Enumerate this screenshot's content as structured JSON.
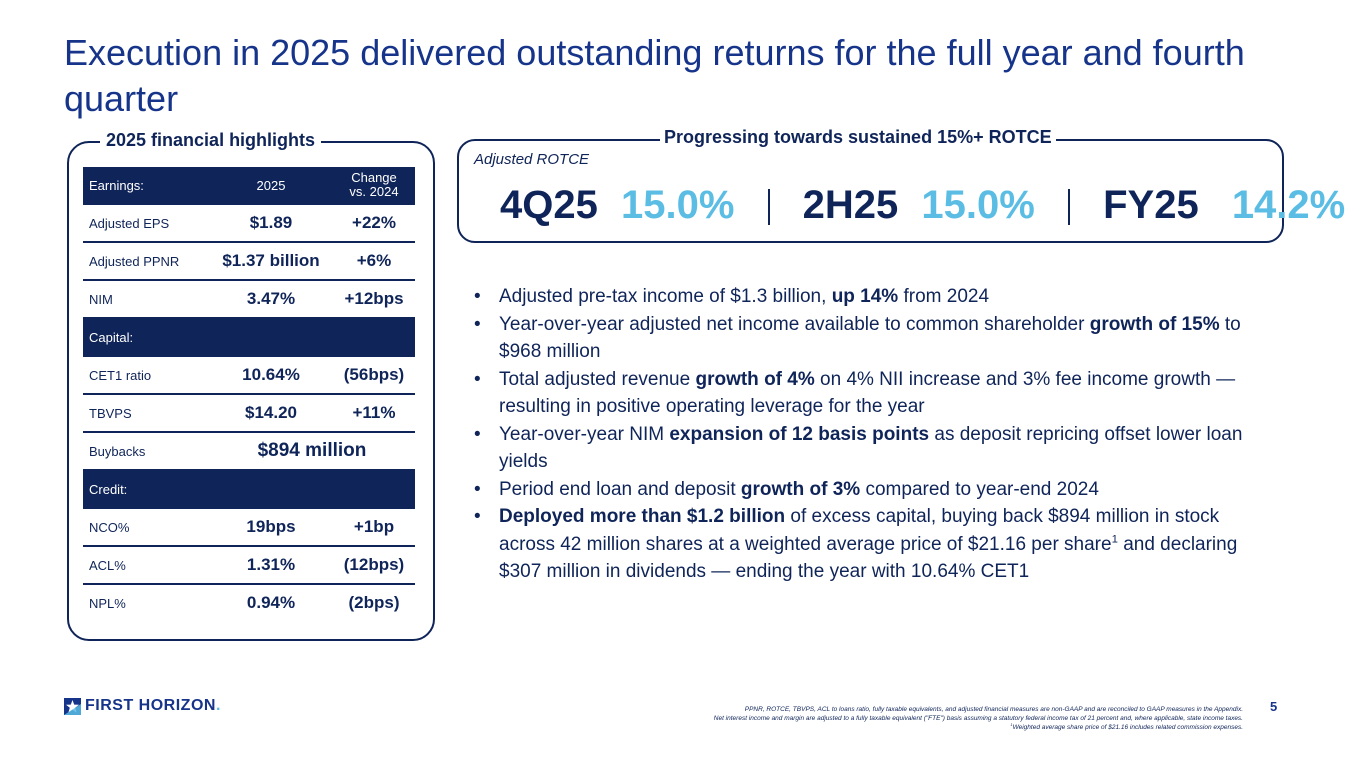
{
  "title": "Execution in 2025 delivered outstanding returns for the full year and fourth quarter",
  "highlights": {
    "label": "2025 financial highlights",
    "earnings_header": {
      "label": "Earnings:",
      "col1": "2025",
      "col2_line1": "Change",
      "col2_line2": "vs. 2024"
    },
    "earnings": [
      {
        "label": "Adjusted EPS",
        "value": "$1.89",
        "change": "+22%"
      },
      {
        "label": "Adjusted PPNR",
        "value": "$1.37 billion",
        "change": "+6%"
      },
      {
        "label": "NIM",
        "value": "3.47%",
        "change": "+12bps"
      }
    ],
    "capital_header": "Capital:",
    "capital": [
      {
        "label": "CET1 ratio",
        "value": "10.64%",
        "change": "(56bps)"
      },
      {
        "label": "TBVPS",
        "value": "$14.20",
        "change": "+11%"
      }
    ],
    "buybacks": {
      "label": "Buybacks",
      "value": "$894 million"
    },
    "credit_header": "Credit:",
    "credit": [
      {
        "label": "NCO%",
        "value": "19bps",
        "change": "+1bp"
      },
      {
        "label": "ACL%",
        "value": "1.31%",
        "change": "(12bps)"
      },
      {
        "label": "NPL%",
        "value": "0.94%",
        "change": "(2bps)"
      }
    ]
  },
  "rotce": {
    "label": "Progressing towards sustained 15%+ ROTCE",
    "sub": "Adjusted ROTCE",
    "items": [
      {
        "period": "4Q25",
        "value": "15.0%"
      },
      {
        "period": "2H25",
        "value": "15.0%"
      },
      {
        "period": "FY25",
        "value": "14.2%"
      }
    ]
  },
  "bullets": [
    {
      "a": "Adjusted pre-tax income of $1.3 billion, ",
      "b": "up 14%",
      "c": " from 2024"
    },
    {
      "a": "Year-over-year adjusted net income available to common shareholder ",
      "b": "growth of 15%",
      "c": " to $968 million"
    },
    {
      "a": "Total adjusted revenue ",
      "b": "growth of 4%",
      "c": " on 4% NII increase and 3% fee income growth — resulting in positive operating leverage for the year"
    },
    {
      "a": "Year-over-year NIM ",
      "b": "expansion of 12 basis points",
      "c": " as deposit repricing offset lower loan yields"
    },
    {
      "a": "Period end loan and deposit ",
      "b": "growth of 3%",
      "c": " compared to year-end 2024"
    },
    {
      "a": "",
      "b": "Deployed more than $1.2 billion",
      "c": " of excess capital, buying back $894 million in stock across 42 million shares at a weighted average price of $21.16 per share",
      "sup": "1",
      "d": " and declaring $307 million in dividends — ending the year with 10.64% CET1"
    }
  ],
  "footer": {
    "logo_text": "FIRST HORIZON",
    "logo_dot": ".",
    "page_number": "5",
    "note1": "PPNR, ROTCE, TBVPS, ACL to loans ratio, fully taxable equivalents, and adjusted financial measures are non-GAAP and are reconciled to GAAP measures in the Appendix.",
    "note2": "Net interest income and margin are adjusted to a fully taxable equivalent (\"FTE\") basis assuming a statutory federal income tax of 21 percent and, where applicable, state income taxes.",
    "note3_sup": "1",
    "note3": "Weighted average share price of $21.16 includes related commission expenses."
  },
  "colors": {
    "navy": "#0f2458",
    "title_blue": "#16348a",
    "light_blue": "#5bbde4"
  }
}
